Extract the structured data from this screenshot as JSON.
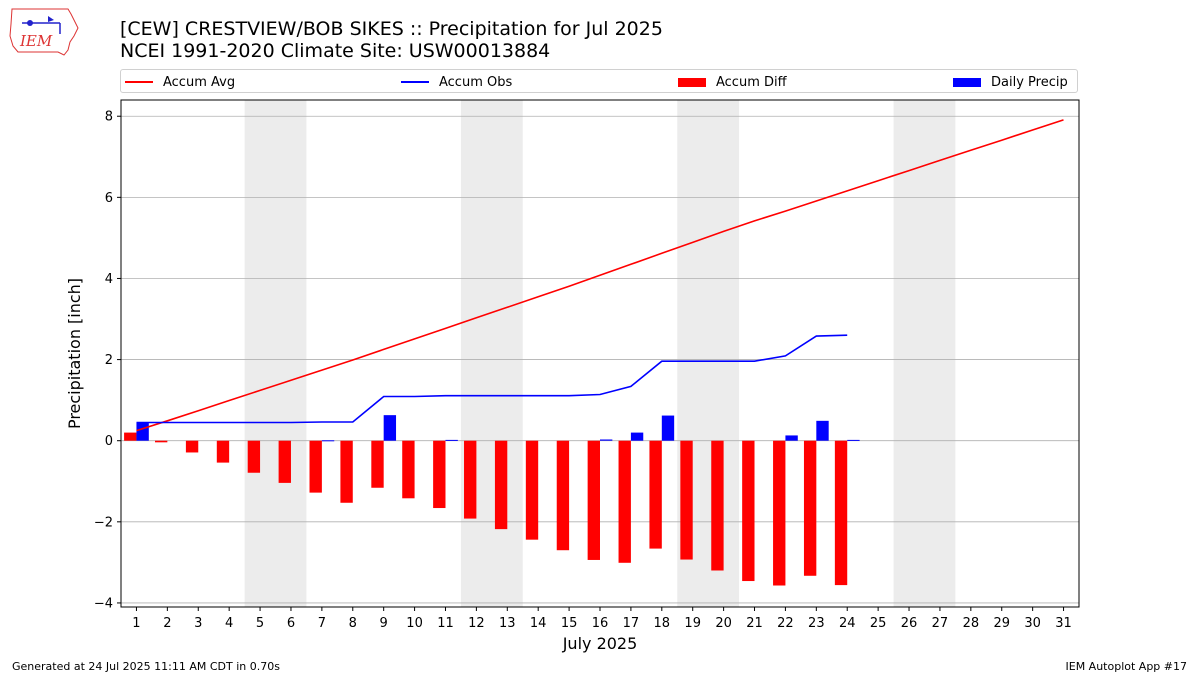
{
  "title_line1": "[CEW] CRESTVIEW/BOB SIKES :: Precipitation for Jul 2025",
  "title_line2": "NCEI 1991-2020 Climate Site: USW00013884",
  "logo": {
    "text": "IEM",
    "icon": "iem-iowa-logo-icon"
  },
  "legend": [
    {
      "label": "Accum Avg",
      "kind": "line",
      "color": "#ff0000"
    },
    {
      "label": "Accum Obs",
      "kind": "line",
      "color": "#0000ff"
    },
    {
      "label": "Accum Diff",
      "kind": "box",
      "color": "#ff0000"
    },
    {
      "label": "Daily Precip",
      "kind": "box",
      "color": "#0000ff"
    }
  ],
  "footer": {
    "left": "Generated at 24 Jul 2025 11:11 AM CDT in 0.70s",
    "right": "IEM Autoplot App #17"
  },
  "chart_data": {
    "type": "bar",
    "xlabel": "July 2025",
    "ylabel": "Precipitation [inch]",
    "xlim": [
      0.5,
      31.5
    ],
    "ylim": [
      -4.1,
      8.4
    ],
    "yticks": [
      -4,
      -2,
      0,
      2,
      4,
      6,
      8
    ],
    "ytick_labels": [
      "−4",
      "−2",
      "0",
      "2",
      "4",
      "6",
      "8"
    ],
    "xticks": [
      1,
      2,
      3,
      4,
      5,
      6,
      7,
      8,
      9,
      10,
      11,
      12,
      13,
      14,
      15,
      16,
      17,
      18,
      19,
      20,
      21,
      22,
      23,
      24,
      25,
      26,
      27,
      28,
      29,
      30,
      31
    ],
    "grid": "horizontal",
    "weekend_shading": [
      [
        5,
        6
      ],
      [
        12,
        13
      ],
      [
        19,
        20
      ],
      [
        26,
        27
      ]
    ],
    "shading_color": "#ececec",
    "series": [
      {
        "name": "Accum Avg",
        "type": "line",
        "color": "#ff0000",
        "x": [
          1,
          2,
          3,
          4,
          5,
          6,
          7,
          8,
          9,
          10,
          11,
          12,
          13,
          14,
          15,
          16,
          17,
          18,
          19,
          20,
          21,
          22,
          23,
          24,
          25,
          26,
          27,
          28,
          29,
          30,
          31
        ],
        "values": [
          0.25,
          0.49,
          0.74,
          0.99,
          1.24,
          1.49,
          1.74,
          1.99,
          2.25,
          2.51,
          2.77,
          3.03,
          3.29,
          3.55,
          3.81,
          4.08,
          4.35,
          4.62,
          4.89,
          5.16,
          5.42,
          5.66,
          5.91,
          6.16,
          6.41,
          6.66,
          6.91,
          7.16,
          7.41,
          7.66,
          7.91
        ]
      },
      {
        "name": "Accum Obs",
        "type": "line",
        "color": "#0000ff",
        "x": [
          1,
          2,
          3,
          4,
          5,
          6,
          7,
          8,
          9,
          10,
          11,
          12,
          13,
          14,
          15,
          16,
          17,
          18,
          19,
          20,
          21,
          22,
          23,
          24
        ],
        "values": [
          0.45,
          0.45,
          0.45,
          0.45,
          0.45,
          0.45,
          0.46,
          0.46,
          1.09,
          1.09,
          1.11,
          1.11,
          1.11,
          1.11,
          1.11,
          1.14,
          1.34,
          1.96,
          1.96,
          1.96,
          1.96,
          2.09,
          2.58,
          2.6
        ]
      },
      {
        "name": "Accum Diff",
        "type": "bar",
        "color": "#ff0000",
        "x": [
          1,
          2,
          3,
          4,
          5,
          6,
          7,
          8,
          9,
          10,
          11,
          12,
          13,
          14,
          15,
          16,
          17,
          18,
          19,
          20,
          21,
          22,
          23,
          24
        ],
        "values": [
          0.2,
          -0.04,
          -0.29,
          -0.54,
          -0.79,
          -1.04,
          -1.28,
          -1.53,
          -1.16,
          -1.42,
          -1.66,
          -1.92,
          -2.18,
          -2.44,
          -2.7,
          -2.94,
          -3.01,
          -2.66,
          -2.93,
          -3.2,
          -3.46,
          -3.57,
          -3.33,
          -3.56
        ]
      },
      {
        "name": "Daily Precip",
        "type": "bar",
        "color": "#0000ff",
        "x": [
          1,
          2,
          3,
          4,
          5,
          6,
          7,
          8,
          9,
          10,
          11,
          12,
          13,
          14,
          15,
          16,
          17,
          18,
          19,
          20,
          21,
          22,
          23,
          24
        ],
        "values": [
          0.45,
          0,
          0,
          0,
          0,
          0,
          0.01,
          0,
          0.63,
          0,
          0.02,
          0,
          0,
          0,
          0,
          0.03,
          0.2,
          0.62,
          0,
          0,
          0,
          0.13,
          0.49,
          0.02
        ]
      }
    ]
  }
}
